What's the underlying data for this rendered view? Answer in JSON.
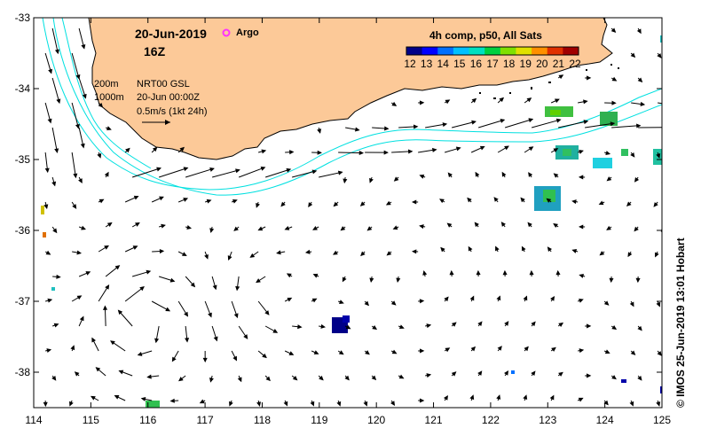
{
  "header": {
    "date": "20-Jun-2019",
    "hour": "16Z",
    "argo_label": "Argo",
    "argo_color": "#ff33ff"
  },
  "legend": {
    "depth_200": "200m",
    "depth_1000": "1000m",
    "product": "NRT00 GSL",
    "analysis_time": "20-Jun 00:00Z",
    "vector_scale": "0.5m/s (1kt 24h)",
    "depth_contour_color": "#00e0e0"
  },
  "colorbar": {
    "title": "4h comp, p50, All Sats",
    "labels": [
      "12",
      "13",
      "14",
      "15",
      "16",
      "17",
      "18",
      "19",
      "20",
      "21",
      "22"
    ],
    "colors": [
      "#000088",
      "#0000ff",
      "#0070ff",
      "#00c0ff",
      "#00e0c0",
      "#00d040",
      "#80e000",
      "#e0e000",
      "#ff9000",
      "#e03000",
      "#a00000"
    ]
  },
  "axes": {
    "x_ticks": [
      "114",
      "115",
      "116",
      "117",
      "118",
      "119",
      "120",
      "121",
      "122",
      "123",
      "124",
      "125"
    ],
    "y_ticks": [
      "-33",
      "-34",
      "-35",
      "-36",
      "-37",
      "-38"
    ],
    "xlim": [
      114,
      125
    ],
    "ylim": [
      -38.5,
      -33
    ]
  },
  "colors": {
    "land": "#fcc998",
    "coast": "#000000"
  },
  "credit": "© IMOS 25-Jun-2019 13:01 Hobart"
}
